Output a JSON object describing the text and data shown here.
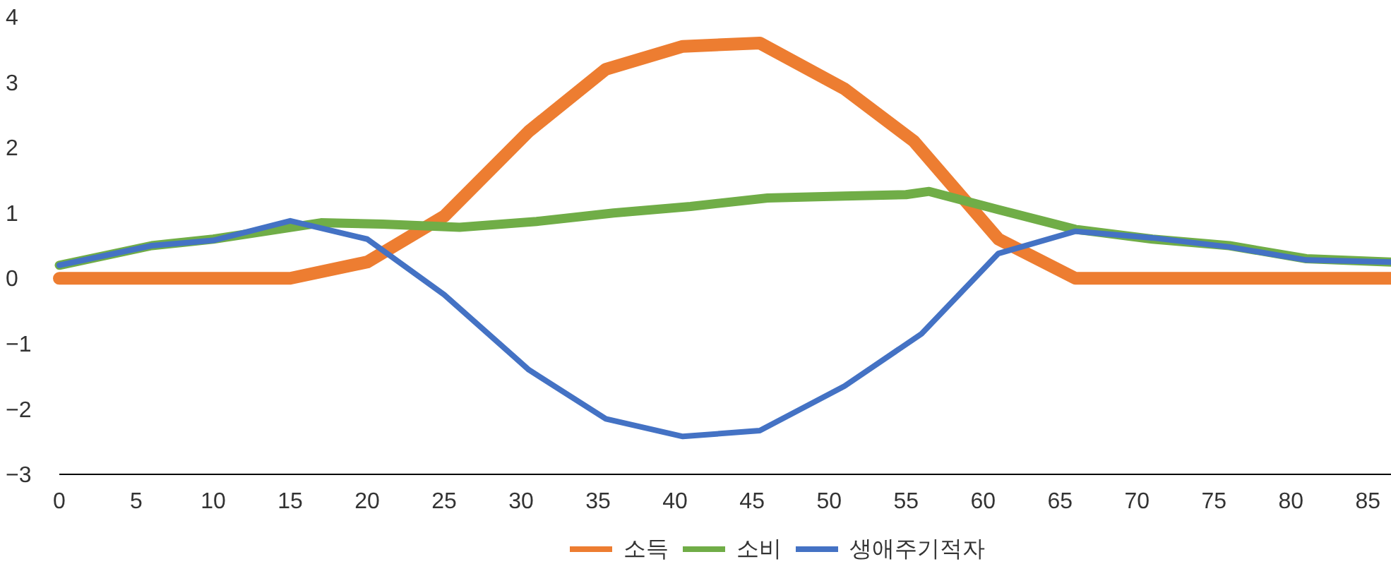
{
  "chart_data": {
    "type": "line",
    "xlim": [
      0,
      86.5
    ],
    "xticks": [
      0,
      5,
      10,
      15,
      20,
      25,
      30,
      35,
      40,
      45,
      50,
      55,
      60,
      65,
      70,
      75,
      80,
      85
    ],
    "ylim": [
      -3,
      4
    ],
    "yticks": [
      {
        "value": -3,
        "label": "−3"
      },
      {
        "value": -2,
        "label": "−2"
      },
      {
        "value": -1,
        "label": "−1"
      },
      0,
      1,
      2,
      3,
      4
    ],
    "grid": false,
    "legend": "bottom",
    "marker": "none",
    "line_style": "solid",
    "series": [
      {
        "name": "소득",
        "color": "#ed7d31",
        "x": [
          0,
          15,
          20,
          25,
          30.5,
          35.5,
          40.5,
          45.5,
          51,
          55.5,
          61,
          66,
          86.5
        ],
        "values": [
          0,
          0,
          0.25,
          0.95,
          2.25,
          3.2,
          3.55,
          3.6,
          2.9,
          2.1,
          0.6,
          0,
          0
        ]
      },
      {
        "name": "소비",
        "color": "#70ad47",
        "x": [
          0,
          6,
          10,
          17,
          21,
          26,
          31,
          36,
          41,
          46,
          51,
          55,
          56.5,
          61,
          66,
          71,
          76,
          81,
          86.5
        ],
        "values": [
          0.2,
          0.5,
          0.6,
          0.85,
          0.83,
          0.78,
          0.87,
          1.0,
          1.1,
          1.23,
          1.26,
          1.28,
          1.33,
          1.05,
          0.75,
          0.6,
          0.5,
          0.3,
          0.25
        ]
      },
      {
        "name": "생애주기적자",
        "color": "#4472c4",
        "x": [
          0,
          6,
          10,
          15,
          20,
          25,
          30.5,
          35.5,
          40.5,
          45.5,
          51,
          56,
          61,
          66,
          71,
          76,
          81,
          86.5
        ],
        "values": [
          0.2,
          0.5,
          0.58,
          0.88,
          0.6,
          -0.25,
          -1.4,
          -2.15,
          -2.42,
          -2.33,
          -1.65,
          -0.85,
          0.38,
          0.72,
          0.62,
          0.48,
          0.28,
          0.25
        ]
      }
    ]
  }
}
